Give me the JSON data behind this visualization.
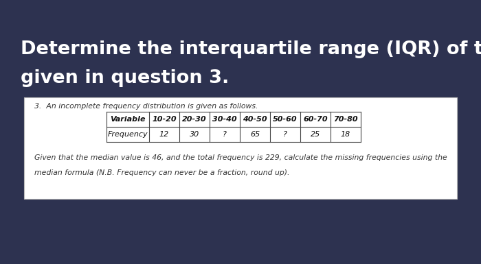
{
  "background_color": "#2d3250",
  "title_line1": "Determine the interquartile range (IQR) of the table",
  "title_line2": "given in question 3.",
  "title_color": "#ffffff",
  "title_fontsize": 19.5,
  "title_fontweight": "bold",
  "card_facecolor": "#ffffff",
  "card_edgecolor": "#bbbbbb",
  "question_label": "3.  An incomplete frequency distribution is given as follows.",
  "question_label_fontsize": 7.8,
  "question_label_color": "#333333",
  "table_headers": [
    "Variable",
    "10-20",
    "20-30",
    "30-40",
    "40-50",
    "50-60",
    "60-70",
    "70-80"
  ],
  "table_row": [
    "Frequency",
    "12",
    "30",
    "?",
    "65",
    "?",
    "25",
    "18"
  ],
  "table_fontsize": 8.0,
  "footer_text1": "Given that the median value is 46, and the total frequency is 229, calculate the missing frequencies using the",
  "footer_text2": "median formula (N.B. Frequency can never be a fraction, round up).",
  "footer_fontsize": 7.8,
  "footer_color": "#333333"
}
